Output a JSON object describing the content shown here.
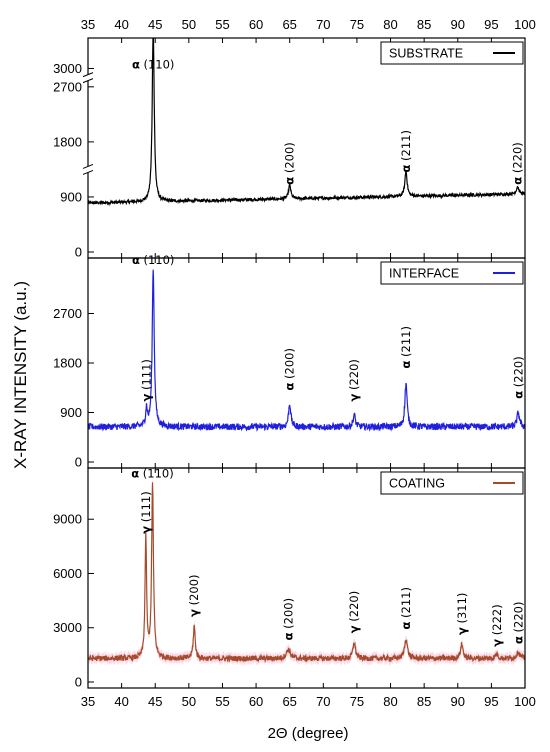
{
  "chart_data": {
    "type": "line",
    "xlabel": "2Θ (degree)",
    "ylabel": "X-RAY INTENSITY (a.u.)",
    "xlim": [
      35,
      100
    ],
    "x_ticks": [
      35,
      40,
      45,
      50,
      55,
      60,
      65,
      70,
      75,
      80,
      85,
      90,
      95,
      100
    ],
    "panels": [
      {
        "name": "SUBSTRATE",
        "color": "#000000",
        "ylim": [
          0,
          3400
        ],
        "y_ticks": [
          0,
          900,
          1800,
          2700,
          3000
        ],
        "y_tick_labels": [
          "0",
          "900",
          "1800",
          "2700",
          "3000"
        ],
        "y_axis_breaks": [
          [
            900,
            1800
          ],
          [
            2700,
            3000
          ]
        ],
        "baseline": 800,
        "baseline_end": 950,
        "noise": 25,
        "peaks": [
          {
            "x": 44.7,
            "height": 2850,
            "width": 0.35
          },
          {
            "x": 65.0,
            "height": 230,
            "width": 0.4
          },
          {
            "x": 82.3,
            "height": 420,
            "width": 0.4
          },
          {
            "x": 98.9,
            "height": 120,
            "width": 0.45
          }
        ],
        "annotations": [
          {
            "x": 44.7,
            "y": 3000,
            "phase": "α",
            "hkl": "(110)",
            "rotated": false
          },
          {
            "x": 65.0,
            "y": 1100,
            "phase": "α",
            "hkl": "(200)",
            "rotated": true
          },
          {
            "x": 82.3,
            "y": 1300,
            "phase": "α",
            "hkl": "(211)",
            "rotated": true
          },
          {
            "x": 98.9,
            "y": 1100,
            "phase": "α",
            "hkl": "(220)",
            "rotated": true
          }
        ]
      },
      {
        "name": "INTERFACE",
        "color": "#1f1fdd",
        "ylim": [
          0,
          3600
        ],
        "y_ticks": [
          0,
          900,
          1800,
          2700
        ],
        "y_tick_labels": [
          "0",
          "900",
          "1800",
          "2700"
        ],
        "baseline": 640,
        "baseline_end": 640,
        "noise": 60,
        "peaks": [
          {
            "x": 43.7,
            "height": 320,
            "width": 0.3
          },
          {
            "x": 44.7,
            "height": 2900,
            "width": 0.35
          },
          {
            "x": 65.0,
            "height": 420,
            "width": 0.4
          },
          {
            "x": 74.6,
            "height": 220,
            "width": 0.4
          },
          {
            "x": 82.3,
            "height": 800,
            "width": 0.4
          },
          {
            "x": 99.0,
            "height": 260,
            "width": 0.45
          }
        ],
        "annotations": [
          {
            "x": 43.7,
            "y": 1100,
            "phase": "γ",
            "hkl": "(111)",
            "rotated": true
          },
          {
            "x": 44.7,
            "y": 3600,
            "phase": "α",
            "hkl": "(110)",
            "rotated": false
          },
          {
            "x": 65.0,
            "y": 1300,
            "phase": "α",
            "hkl": "(200)",
            "rotated": true
          },
          {
            "x": 74.6,
            "y": 1100,
            "phase": "γ",
            "hkl": "(220)",
            "rotated": true
          },
          {
            "x": 82.3,
            "y": 1700,
            "phase": "α",
            "hkl": "(211)",
            "rotated": true
          },
          {
            "x": 99.0,
            "y": 1150,
            "phase": "α",
            "hkl": "(220)",
            "rotated": true
          }
        ]
      },
      {
        "name": "COATING",
        "color": "#a54a2a",
        "band_color": "#f6c6dc",
        "ylim": [
          0,
          11500
        ],
        "y_ticks": [
          0,
          3000,
          6000,
          9000
        ],
        "y_tick_labels": [
          "0",
          "3000",
          "6000",
          "9000"
        ],
        "baseline": 1300,
        "baseline_end": 1300,
        "noise": 150,
        "peaks": [
          {
            "x": 43.6,
            "height": 6600,
            "width": 0.28
          },
          {
            "x": 44.6,
            "height": 9700,
            "width": 0.32
          },
          {
            "x": 50.8,
            "height": 1800,
            "width": 0.35
          },
          {
            "x": 64.8,
            "height": 500,
            "width": 0.7
          },
          {
            "x": 74.6,
            "height": 900,
            "width": 0.45
          },
          {
            "x": 82.3,
            "height": 1100,
            "width": 0.5
          },
          {
            "x": 90.6,
            "height": 800,
            "width": 0.45
          },
          {
            "x": 95.8,
            "height": 250,
            "width": 0.5
          },
          {
            "x": 99.0,
            "height": 350,
            "width": 0.6
          }
        ],
        "annotations": [
          {
            "x": 43.6,
            "y": 8200,
            "phase": "γ",
            "hkl": "(111)",
            "rotated": true
          },
          {
            "x": 44.6,
            "y": 11300,
            "phase": "α",
            "hkl": "(110)",
            "rotated": false
          },
          {
            "x": 50.8,
            "y": 3600,
            "phase": "γ",
            "hkl": "(200)",
            "rotated": true
          },
          {
            "x": 64.8,
            "y": 2300,
            "phase": "α",
            "hkl": "(200)",
            "rotated": true
          },
          {
            "x": 74.6,
            "y": 2700,
            "phase": "γ",
            "hkl": "(220)",
            "rotated": true
          },
          {
            "x": 82.3,
            "y": 2900,
            "phase": "α",
            "hkl": "(211)",
            "rotated": true
          },
          {
            "x": 90.6,
            "y": 2600,
            "phase": "γ",
            "hkl": "(311)",
            "rotated": true
          },
          {
            "x": 95.8,
            "y": 1950,
            "phase": "γ",
            "hkl": "(222)",
            "rotated": true
          },
          {
            "x": 99.0,
            "y": 2100,
            "phase": "α",
            "hkl": "(220)",
            "rotated": true
          }
        ]
      }
    ]
  }
}
